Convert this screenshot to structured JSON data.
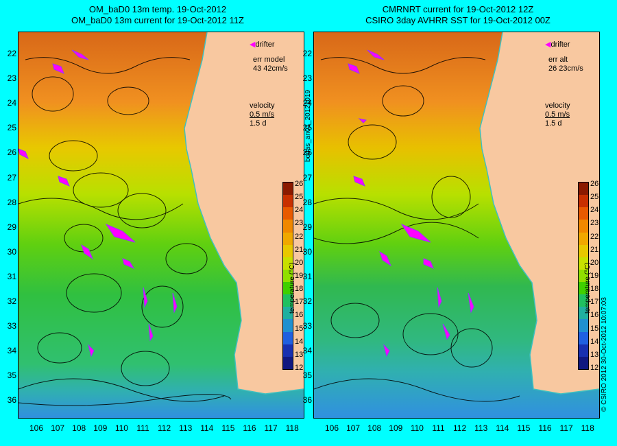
{
  "left_title": {
    "line1": "OM_baD0 13m temp. 19-Oct-2012",
    "line2": "OM_baD0 13m current for 19-Oct-2012 11Z"
  },
  "right_title": {
    "line1": "CMRNRT current for 19-Oct-2012 12Z",
    "line2": "CSIRO 3day AVHRR SST for 19-Oct-2012 00Z"
  },
  "left_panel": {
    "drifter": "drifter",
    "err_line1": "err model",
    "err_line2": "43 42cm/s",
    "velocity": "velocity",
    "velocity_scale": "0.5 m/s",
    "velocity_time": "1.5 d"
  },
  "right_panel": {
    "drifter": "drifter",
    "err_line1": "err alt",
    "err_line2": "26 23cm/s",
    "velocity": "velocity",
    "velocity_scale": "0.5 m/s",
    "velocity_time": "1.5 d"
  },
  "y_ticks": [
    "22",
    "23",
    "24",
    "25",
    "26",
    "27",
    "28",
    "29",
    "30",
    "31",
    "32",
    "33",
    "34",
    "35",
    "36"
  ],
  "x_ticks": [
    "106",
    "107",
    "108",
    "109",
    "110",
    "111",
    "112",
    "113",
    "114",
    "115",
    "116",
    "117",
    "118"
  ],
  "colorbar": {
    "ticks": [
      "26",
      "25",
      "24",
      "23",
      "22",
      "21",
      "20",
      "19",
      "18",
      "17",
      "16",
      "15",
      "14",
      "13",
      "12"
    ],
    "label": "temperature (°C)",
    "colors": [
      "#8b1a00",
      "#c83000",
      "#e85a00",
      "#f08800",
      "#f0a800",
      "#e8c800",
      "#c8e000",
      "#90e000",
      "#40d000",
      "#20c060",
      "#20b0a0",
      "#2090d0",
      "#2060e0",
      "#1830b0",
      "#101880"
    ]
  },
  "side_text_run": "bodas_an01_20121019",
  "side_text_copyright": "© CSIRO 2012   30-Oct-2012 10:07:03",
  "colors": {
    "background": "#00ffff",
    "land": "#f8c8a0",
    "coast_line": "#40c0c0",
    "drifter": "#ff00ff"
  }
}
